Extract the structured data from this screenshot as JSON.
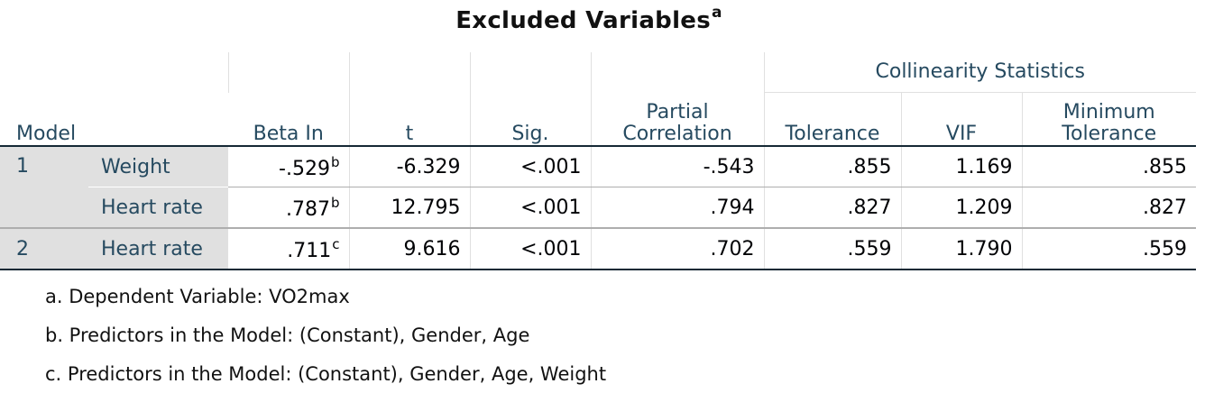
{
  "title": {
    "text": "Excluded Variables",
    "superscript": "a"
  },
  "headers": {
    "model": "Model",
    "beta_in": "Beta In",
    "t": "t",
    "sig": "Sig.",
    "partial_line1": "Partial",
    "partial_line2": "Correlation",
    "collinearity": "Collinearity Statistics",
    "tolerance": "Tolerance",
    "vif": "VIF",
    "min_tol_line1": "Minimum",
    "min_tol_line2": "Tolerance"
  },
  "rows": [
    {
      "model": "1",
      "variable": "Weight",
      "beta_in": "-.529",
      "beta_note": "b",
      "t": "-6.329",
      "sig": "<.001",
      "partial": "-.543",
      "tolerance": ".855",
      "vif": "1.169",
      "min_tolerance": ".855"
    },
    {
      "model": "",
      "variable": "Heart rate",
      "beta_in": ".787",
      "beta_note": "b",
      "t": "12.795",
      "sig": "<.001",
      "partial": ".794",
      "tolerance": ".827",
      "vif": "1.209",
      "min_tolerance": ".827"
    },
    {
      "model": "2",
      "variable": "Heart rate",
      "beta_in": ".711",
      "beta_note": "c",
      "t": "9.616",
      "sig": "<.001",
      "partial": ".702",
      "tolerance": ".559",
      "vif": "1.790",
      "min_tolerance": ".559"
    }
  ],
  "footnotes": [
    "a. Dependent Variable: VO2max",
    "b. Predictors in the Model: (Constant), Gender, Age",
    "c. Predictors in the Model: (Constant), Gender, Age, Weight"
  ]
}
